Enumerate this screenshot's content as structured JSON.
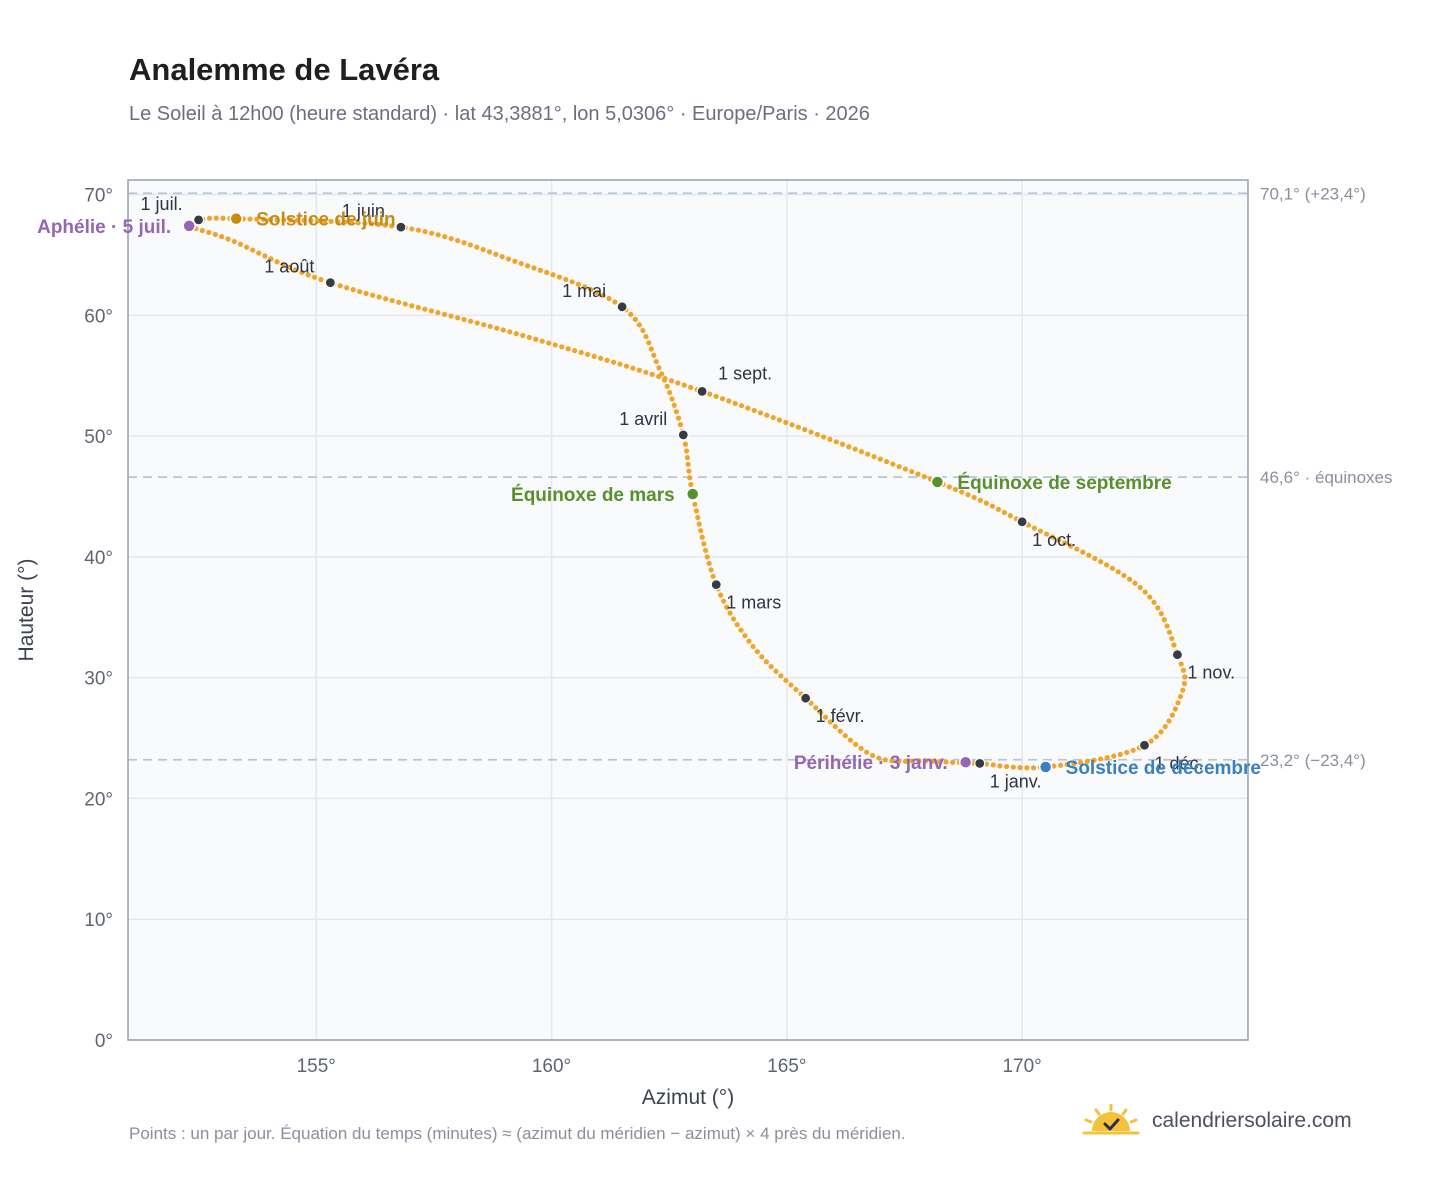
{
  "header": {
    "title": "Analemme de Lavéra",
    "subtitle": "Le Soleil à 12h00 (heure standard) · lat 43,3881°, lon 5,0306° · Europe/Paris · 2026"
  },
  "footer": {
    "note": "Points : un par jour. Équation du temps (minutes) ≈ (azimut du méridien − azimut) × 4 près du méridien.",
    "brand": "calendriersolaire.com",
    "brand_icon": "sun-check-icon"
  },
  "colors": {
    "curve": "#f0a52a",
    "month_marker": "#363b45",
    "solstice_june": "#c98a12",
    "solstice_december": "#3a7fc0",
    "equinox": "#5a8f2d",
    "apsis": "#9466b4",
    "reference_line": "#b9c6d3",
    "plot_background": "#f8fafc",
    "grid": "#e3e8ee",
    "frame": "#9aa5b5"
  },
  "chart_data": {
    "type": "scatter",
    "xlabel": "Azimut (°)",
    "ylabel": "Hauteur (°)",
    "xlim": [
      151,
      174.8
    ],
    "ylim": [
      0,
      71.2
    ],
    "x_ticks": [
      155,
      160,
      165,
      170
    ],
    "x_tick_labels": [
      "155°",
      "160°",
      "165°",
      "170°"
    ],
    "y_ticks": [
      0,
      10,
      20,
      30,
      40,
      50,
      60,
      70
    ],
    "y_tick_labels": [
      "0°",
      "10°",
      "20°",
      "30°",
      "40°",
      "50°",
      "60°",
      "70°"
    ],
    "grid": true,
    "analemma_path": [
      {
        "x": 169.1,
        "y": 22.9
      },
      {
        "x": 168.0,
        "y": 23.1
      },
      {
        "x": 166.8,
        "y": 23.6
      },
      {
        "x": 165.4,
        "y": 28.3
      },
      {
        "x": 164.3,
        "y": 32.5
      },
      {
        "x": 163.5,
        "y": 37.7
      },
      {
        "x": 163.0,
        "y": 45.2
      },
      {
        "x": 162.8,
        "y": 50.1
      },
      {
        "x": 162.3,
        "y": 55.5
      },
      {
        "x": 161.5,
        "y": 60.7
      },
      {
        "x": 159.2,
        "y": 64.5
      },
      {
        "x": 156.8,
        "y": 67.3
      },
      {
        "x": 153.3,
        "y": 68.0
      },
      {
        "x": 152.5,
        "y": 67.9
      },
      {
        "x": 152.3,
        "y": 67.4
      },
      {
        "x": 153.2,
        "y": 66.2
      },
      {
        "x": 155.3,
        "y": 62.7
      },
      {
        "x": 159.5,
        "y": 58.2
      },
      {
        "x": 163.2,
        "y": 53.7
      },
      {
        "x": 168.2,
        "y": 46.2
      },
      {
        "x": 170.0,
        "y": 42.9
      },
      {
        "x": 172.5,
        "y": 37.5
      },
      {
        "x": 173.3,
        "y": 31.9
      },
      {
        "x": 173.4,
        "y": 28.8
      },
      {
        "x": 172.6,
        "y": 24.4
      },
      {
        "x": 170.5,
        "y": 22.6
      },
      {
        "x": 169.1,
        "y": 22.9
      }
    ],
    "month_markers": [
      {
        "label": "1 janv.",
        "x": 169.1,
        "y": 22.9,
        "label_pos": "below-right"
      },
      {
        "label": "1 févr.",
        "x": 165.4,
        "y": 28.3,
        "label_pos": "below-right"
      },
      {
        "label": "1 mars",
        "x": 163.5,
        "y": 37.7,
        "label_pos": "below-right"
      },
      {
        "label": "1 avril",
        "x": 162.8,
        "y": 50.1,
        "label_pos": "above-left"
      },
      {
        "label": "1 mai",
        "x": 161.5,
        "y": 60.7,
        "label_pos": "above-left"
      },
      {
        "label": "1 juin",
        "x": 156.8,
        "y": 67.3,
        "label_pos": "above-left"
      },
      {
        "label": "1 juil.",
        "x": 152.5,
        "y": 67.9,
        "label_pos": "above-left"
      },
      {
        "label": "1 août",
        "x": 155.3,
        "y": 62.7,
        "label_pos": "above-left"
      },
      {
        "label": "1 sept.",
        "x": 163.2,
        "y": 53.7,
        "label_pos": "above-right"
      },
      {
        "label": "1 oct.",
        "x": 170.0,
        "y": 42.9,
        "label_pos": "below-right"
      },
      {
        "label": "1 nov.",
        "x": 173.3,
        "y": 31.9,
        "label_pos": "below-right"
      },
      {
        "label": "1 déc.",
        "x": 172.6,
        "y": 24.4,
        "label_pos": "below-right"
      }
    ],
    "special_points": [
      {
        "label": "Solstice de juin",
        "x": 153.3,
        "y": 68.0,
        "color": "#c98a12",
        "label_pos": "right"
      },
      {
        "label": "Aphélie · 5 juil.",
        "x": 152.3,
        "y": 67.4,
        "color": "#9466b4",
        "label_pos": "left"
      },
      {
        "label": "Équinoxe de mars",
        "x": 163.0,
        "y": 45.2,
        "color": "#5a8f2d",
        "label_pos": "left"
      },
      {
        "label": "Équinoxe de septembre",
        "x": 168.2,
        "y": 46.2,
        "color": "#5a8f2d",
        "label_pos": "right"
      },
      {
        "label": "Périhélie · 3 janv.",
        "x": 168.8,
        "y": 23.0,
        "color": "#9466b4",
        "label_pos": "left"
      },
      {
        "label": "Solstice de décembre",
        "x": 170.5,
        "y": 22.6,
        "color": "#3a7fc0",
        "label_pos": "right"
      }
    ],
    "reference_lines": [
      {
        "y": 70.1,
        "label": "70,1° (+23,4°)"
      },
      {
        "y": 46.6,
        "label": "46,6° · équinoxes"
      },
      {
        "y": 23.2,
        "label": "23,2° (−23,4°)"
      }
    ]
  }
}
